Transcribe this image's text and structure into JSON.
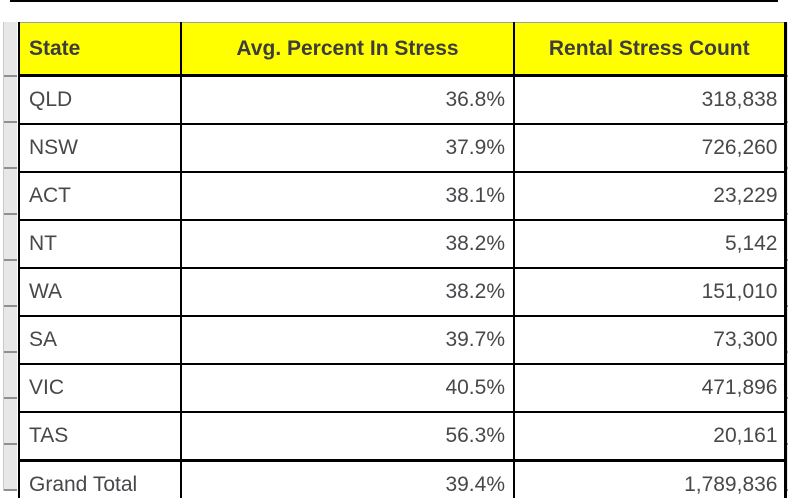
{
  "colors": {
    "header_bg": "#ffff00",
    "header_text": "#3d3d3d",
    "body_text": "#48484c",
    "grid_border": "#000000",
    "row_strip": "#e7e7e7"
  },
  "table": {
    "columns": [
      {
        "label": "State"
      },
      {
        "label": "Avg. Percent In Stress"
      },
      {
        "label": "Rental Stress Count"
      }
    ],
    "rows": [
      {
        "state": "QLD",
        "avg_percent": "36.8%",
        "count": "318,838"
      },
      {
        "state": "NSW",
        "avg_percent": "37.9%",
        "count": "726,260"
      },
      {
        "state": "ACT",
        "avg_percent": "38.1%",
        "count": "23,229"
      },
      {
        "state": "NT",
        "avg_percent": "38.2%",
        "count": "5,142"
      },
      {
        "state": "WA",
        "avg_percent": "38.2%",
        "count": "151,010"
      },
      {
        "state": "SA",
        "avg_percent": "39.7%",
        "count": "73,300"
      },
      {
        "state": "VIC",
        "avg_percent": "40.5%",
        "count": "471,896"
      },
      {
        "state": "TAS",
        "avg_percent": "56.3%",
        "count": "20,161"
      }
    ],
    "grand_total": {
      "state": "Grand Total",
      "avg_percent": "39.4%",
      "count": "1,789,836"
    }
  },
  "chart_data": {
    "type": "table",
    "title": "",
    "columns": [
      "State",
      "Avg. Percent In Stress",
      "Rental Stress Count"
    ],
    "rows": [
      [
        "QLD",
        "36.8%",
        "318,838"
      ],
      [
        "NSW",
        "37.9%",
        "726,260"
      ],
      [
        "ACT",
        "38.1%",
        "23,229"
      ],
      [
        "NT",
        "38.2%",
        "5,142"
      ],
      [
        "WA",
        "38.2%",
        "151,010"
      ],
      [
        "SA",
        "39.7%",
        "73,300"
      ],
      [
        "VIC",
        "40.5%",
        "471,896"
      ],
      [
        "TAS",
        "56.3%",
        "20,161"
      ],
      [
        "Grand Total",
        "39.4%",
        "1,789,836"
      ]
    ],
    "avg_percent_values": [
      36.8,
      37.9,
      38.1,
      38.2,
      38.2,
      39.7,
      40.5,
      56.3
    ],
    "count_values": [
      318838,
      726260,
      23229,
      5142,
      151010,
      73300,
      471896,
      20161
    ],
    "grand_total": {
      "avg_percent": 39.4,
      "count": 1789836
    }
  }
}
